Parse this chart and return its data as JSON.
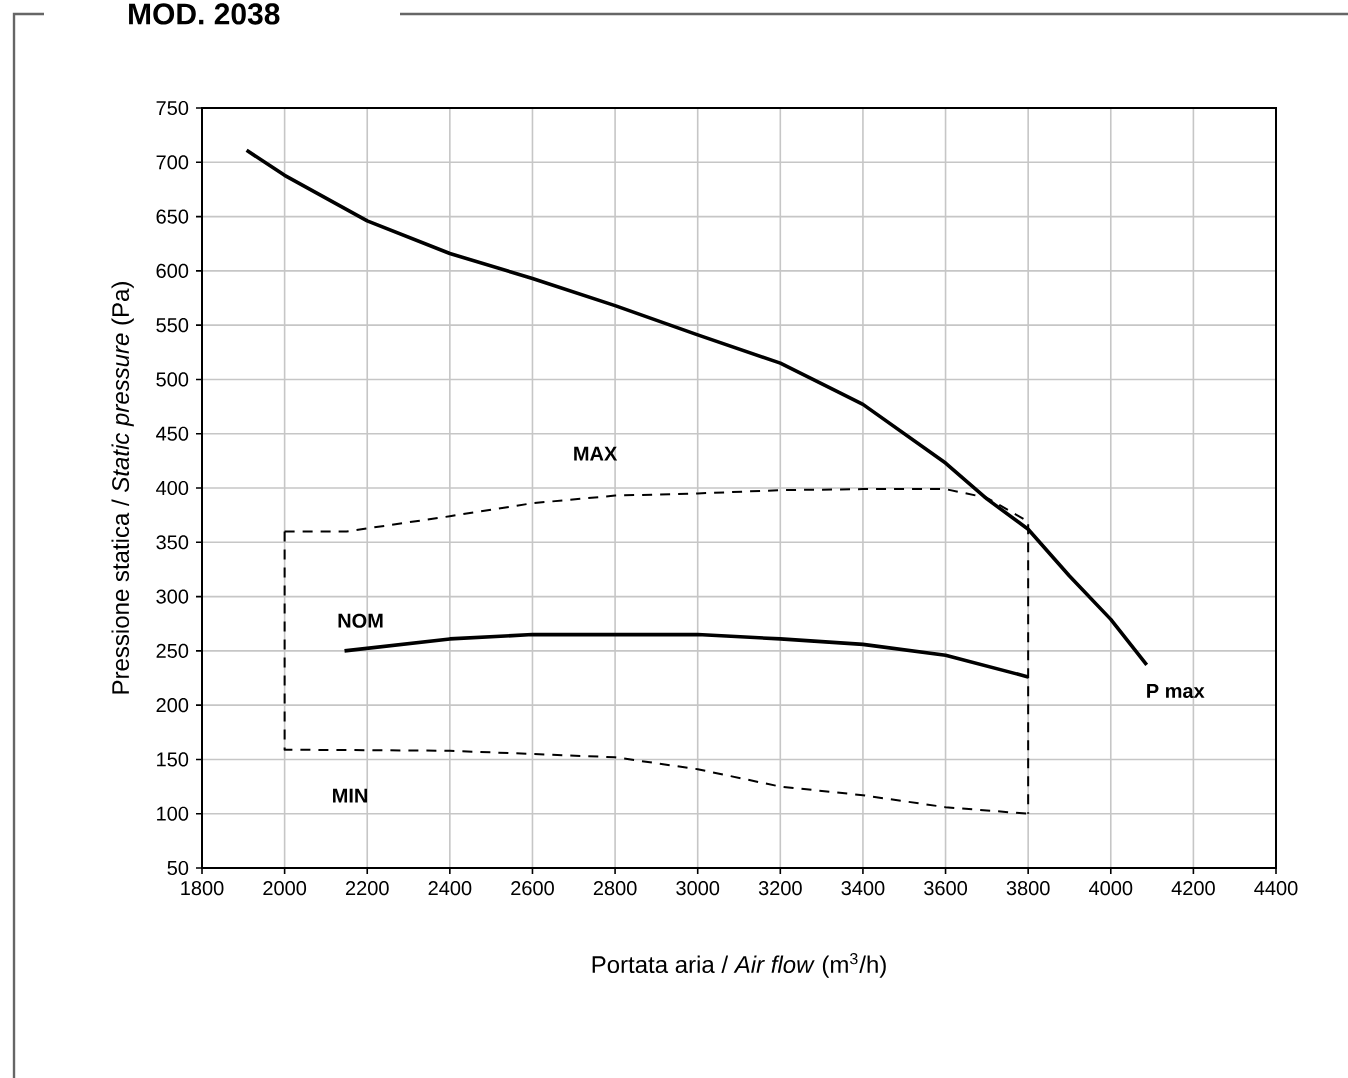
{
  "chart_data": {
    "type": "line",
    "title": "MOD. 2038",
    "xlabel": "Portata aria / *Air flow* (m$^{3}$/h)",
    "ylabel": "Pressione statica / *Static pressure* (Pa)",
    "xlim": [
      1800,
      4400
    ],
    "xticks": [
      1800,
      2000,
      2200,
      2400,
      2600,
      2800,
      3000,
      3200,
      3400,
      3600,
      3800,
      4000,
      4200,
      4400
    ],
    "ylim": [
      50,
      750
    ],
    "yticks": [
      50,
      100,
      150,
      200,
      250,
      300,
      350,
      400,
      450,
      500,
      550,
      600,
      650,
      700,
      750
    ],
    "grid": true,
    "marker": "none",
    "series": [
      {
        "name": "P max",
        "color": "#000000",
        "line_style": "solid",
        "x": [
          1908,
          2000,
          2200,
          2400,
          2600,
          2800,
          3000,
          3200,
          3342,
          3400,
          3600,
          3700,
          3800,
          3900,
          4000,
          4087
        ],
        "values": [
          711,
          688,
          646,
          616,
          593,
          568,
          541,
          515,
          488,
          477,
          423,
          390,
          362,
          319,
          279,
          237
        ]
      },
      {
        "name": "NOM",
        "color": "#000000",
        "line_style": "solid",
        "x": [
          2145,
          2400,
          2600,
          2800,
          3000,
          3200,
          3400,
          3600,
          3800
        ],
        "values": [
          250,
          261,
          265,
          265,
          265,
          261,
          256,
          246,
          226
        ]
      },
      {
        "name": "MAX",
        "color": "#000000",
        "line_style": "dashed",
        "x": [
          2000,
          2150,
          2400,
          2600,
          2800,
          3000,
          3200,
          3400,
          3600,
          3700,
          3800,
          3800
        ],
        "values": [
          360,
          360,
          374,
          386,
          393,
          395,
          398,
          399,
          399,
          391,
          369,
          100
        ]
      },
      {
        "name": "MIN",
        "color": "#000000",
        "line_style": "dashed",
        "x": [
          2000,
          2000,
          2400,
          2600,
          2800,
          3000,
          3200,
          3400,
          3600,
          3800
        ],
        "values": [
          360,
          159,
          158,
          155,
          152,
          141,
          125,
          117,
          106,
          100
        ]
      }
    ]
  }
}
